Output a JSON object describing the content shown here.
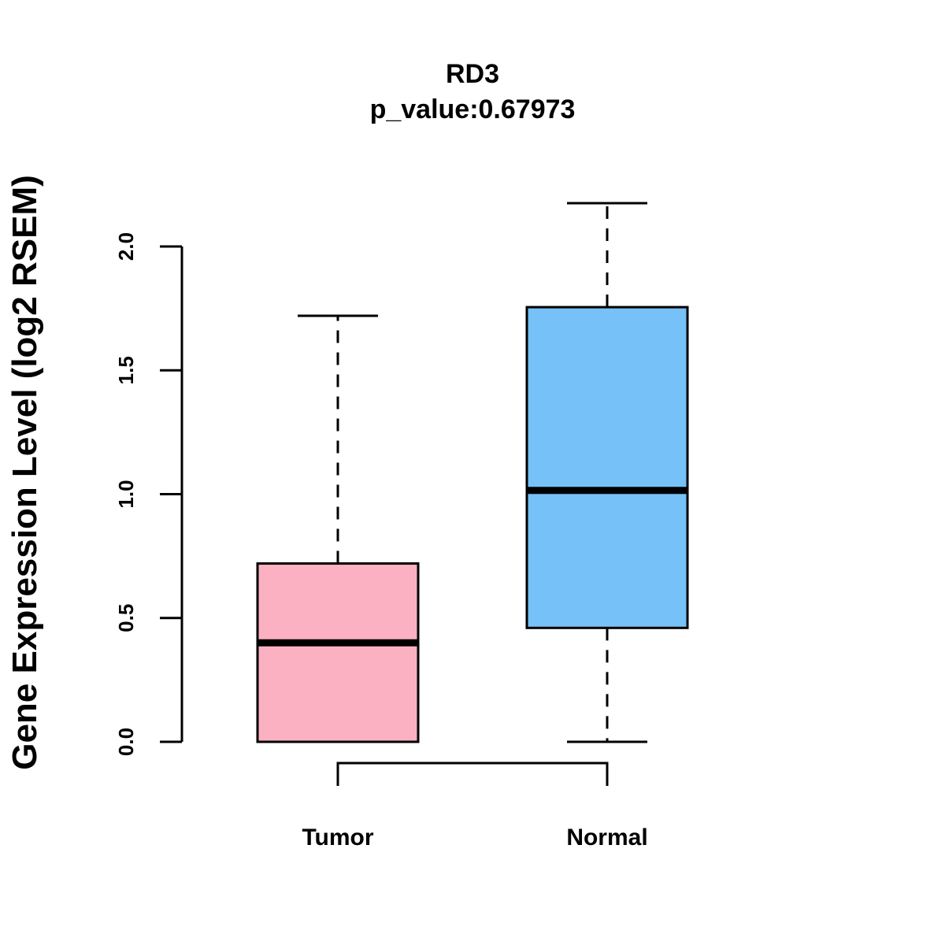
{
  "chart_data": {
    "type": "box",
    "title": "RD3",
    "subtitle": "p_value:0.67973",
    "xlabel": "",
    "ylabel": "Gene Expression Level (log2 RSEM)",
    "ylim": [
      0,
      2.0
    ],
    "y_ticks": [
      0.0,
      0.5,
      1.0,
      1.5,
      2.0
    ],
    "y_tick_labels": [
      "0.0",
      "0.5",
      "1.0",
      "1.5",
      "2.0"
    ],
    "grid": false,
    "categories": [
      "Tumor",
      "Normal"
    ],
    "series": [
      {
        "name": "Tumor",
        "min": 0.0,
        "q1": 0.0,
        "median": 0.4,
        "q3": 0.72,
        "max": 1.72,
        "color": "#FBB1C2"
      },
      {
        "name": "Normal",
        "min": 0.0,
        "q1": 0.46,
        "median": 1.015,
        "q3": 1.755,
        "max": 2.175,
        "color": "#76C1F7"
      }
    ],
    "comparison_bracket": [
      "Tumor",
      "Normal"
    ]
  }
}
